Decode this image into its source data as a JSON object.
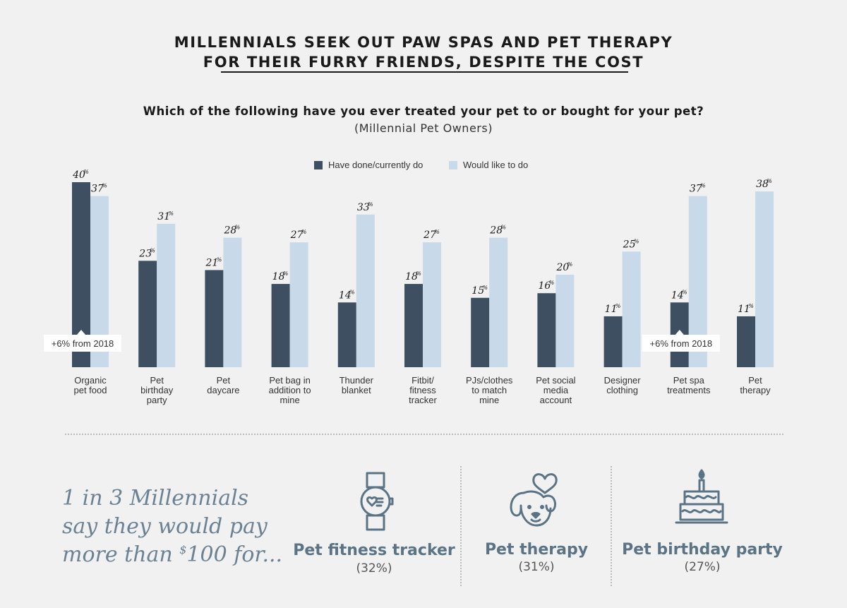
{
  "header": {
    "title_line1": "MILLENNIALS SEEK OUT PAW SPAS AND PET THERAPY",
    "title_line2": "FOR THEIR FURRY FRIENDS, DESPITE THE COST",
    "question": "Which of the following have you ever treated your pet to or bought for your pet?",
    "subquestion": "(Millennial Pet Owners)"
  },
  "colors": {
    "dark": "#3d4f60",
    "light": "#c8daea",
    "accent": "#5a7486",
    "background": "#f0f1f0"
  },
  "chart_data": {
    "type": "bar",
    "ylim": [
      0,
      40
    ],
    "categories": [
      [
        "Organic",
        "pet food"
      ],
      [
        "Pet",
        "birthday",
        "party"
      ],
      [
        "Pet",
        "daycare"
      ],
      [
        "Pet bag in",
        "addition to",
        "mine"
      ],
      [
        "Thunder",
        "blanket"
      ],
      [
        "Fitbit/",
        "fitness",
        "tracker"
      ],
      [
        "PJs/clothes",
        "to match",
        "mine"
      ],
      [
        "Pet social",
        "media",
        "account"
      ],
      [
        "Designer",
        "clothing"
      ],
      [
        "Pet spa",
        "treatments"
      ],
      [
        "Pet",
        "therapy"
      ]
    ],
    "series": [
      {
        "name": "Have done/currently do",
        "color": "#3d4f60",
        "values": [
          40,
          23,
          21,
          18,
          14,
          18,
          15,
          16,
          11,
          14,
          11
        ]
      },
      {
        "name": "Would like to do",
        "color": "#c8daea",
        "values": [
          37,
          31,
          28,
          27,
          33,
          27,
          28,
          20,
          25,
          37,
          38
        ]
      }
    ],
    "value_suffix": "%",
    "annotations": [
      {
        "category_index": 0,
        "text": "+6% from 2018"
      },
      {
        "category_index": 9,
        "text": "+6% from 2018"
      }
    ]
  },
  "footer": {
    "quote_line1": "1 in 3 Millennials",
    "quote_line2": "say they would pay",
    "quote_line3a": "more than ",
    "quote_currency": "$",
    "quote_line3b": "100 for...",
    "stats": [
      {
        "label": "Pet fitness tracker",
        "pct": "(32%)",
        "icon": "smartwatch-icon"
      },
      {
        "label": "Pet therapy",
        "pct": "(31%)",
        "icon": "dog-heart-icon"
      },
      {
        "label": "Pet birthday party",
        "pct": "(27%)",
        "icon": "birthday-cake-icon"
      }
    ]
  }
}
